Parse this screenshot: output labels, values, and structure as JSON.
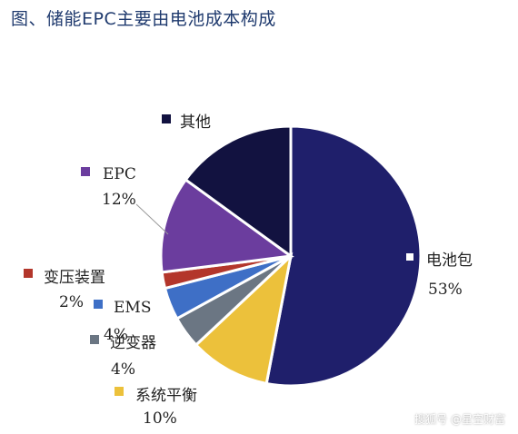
{
  "title": "图、储能EPC主要由电池成本构成",
  "watermark": "搜狐号 @星空财富",
  "chart_data": {
    "type": "pie",
    "title": "图、储能EPC主要由电池成本构成",
    "slices": [
      {
        "label": "电池包",
        "value": 53,
        "pct_text": "53%",
        "color": "#1f1f6b"
      },
      {
        "label": "系统平衡",
        "value": 10,
        "pct_text": "10%",
        "color": "#ecc13b"
      },
      {
        "label": "逆变器",
        "value": 4,
        "pct_text": "4%",
        "color": "#6b7683"
      },
      {
        "label": "EMS",
        "value": 4,
        "pct_text": "4%",
        "color": "#3e6fc6"
      },
      {
        "label": "变压装置",
        "value": 2,
        "pct_text": "2%",
        "color": "#b3362b"
      },
      {
        "label": "EPC",
        "value": 12,
        "pct_text": "12%",
        "color": "#6b3d9e"
      },
      {
        "label": "其他",
        "value": 15,
        "pct_text": "",
        "color": "#121240"
      }
    ],
    "start_angle_deg": 0,
    "direction": "clockwise",
    "legend_placement": "labels-around-pie"
  }
}
